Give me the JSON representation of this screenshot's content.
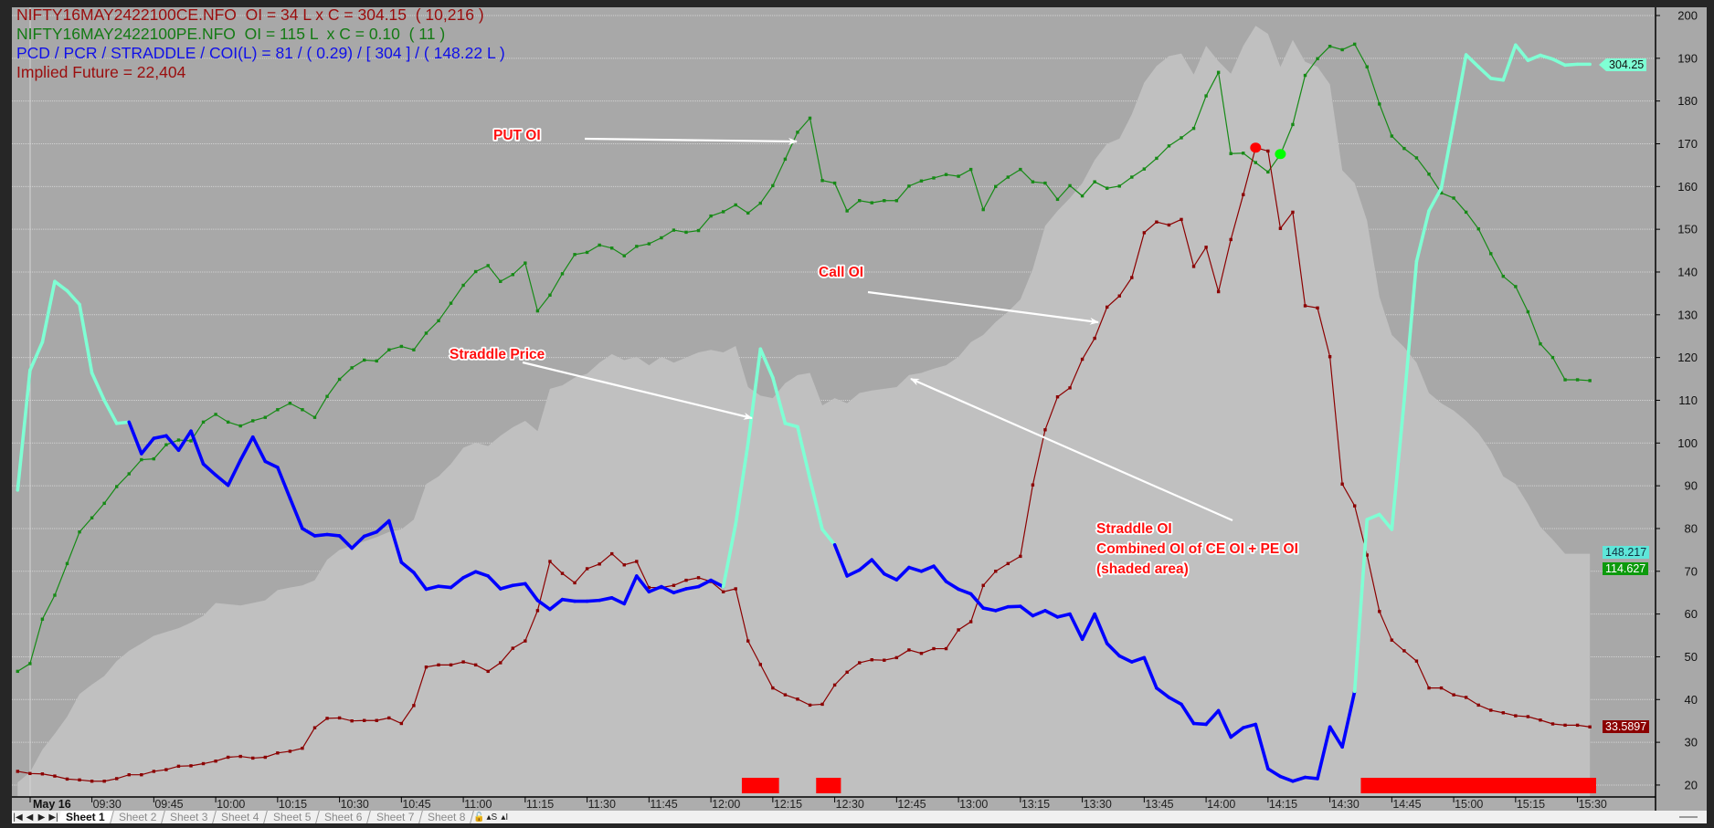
{
  "header": {
    "line1": "NIFTY16MAY2422100CE.NFO  OI = 34 L x C = 304.15  ( 10,216 )",
    "line2": "NIFTY16MAY2422100PE.NFO  OI = 115 L  x C = 0.10  ( 11 )",
    "line3": "PCD / PCR / STRADDLE / COI(L) = 81 / ( 0.29) / [ 304 ] / ( 148.22 L )",
    "line4": "Implied Future = 22,404"
  },
  "annotations": {
    "put_oi": "PUT OI",
    "call_oi": "Call OI",
    "straddle_price": "Straddle Price",
    "straddle_oi_1": "Straddle OI",
    "straddle_oi_2": "Combined OI of CE OI + PE OI",
    "straddle_oi_3": "(shaded area)"
  },
  "value_labels": {
    "straddle": "304.25",
    "coi": "148.217",
    "pe_oi": "114.627",
    "ce_oi": "33.5897"
  },
  "sheets": {
    "nav": [
      "|◀",
      "◀",
      "▶",
      "▶|"
    ],
    "tabs": [
      "Sheet 1",
      "Sheet 2",
      "Sheet 3",
      "Sheet 4",
      "Sheet 5",
      "Sheet 6",
      "Sheet 7",
      "Sheet 8"
    ],
    "active": "Sheet 1",
    "icons": [
      "lock-icon",
      "scale-s-icon",
      "scale-i-icon"
    ],
    "icon_glyphs": [
      "🔓",
      "▴S",
      "▴I"
    ]
  },
  "chart_data": {
    "type": "line",
    "title": "",
    "start_time": "09:12",
    "interval_min": 3,
    "x_axis": {
      "date_label": "May 16",
      "ticks": [
        "09:30",
        "09:45",
        "10:00",
        "10:15",
        "10:30",
        "10:45",
        "11:00",
        "11:15",
        "11:30",
        "11:45",
        "12:00",
        "12:15",
        "12:30",
        "12:45",
        "13:00",
        "13:15",
        "13:30",
        "13:45",
        "14:00",
        "14:15",
        "14:30",
        "14:45",
        "15:00",
        "15:15",
        "15:30"
      ]
    },
    "y_axis": {
      "position": "right",
      "range": [
        20,
        200
      ],
      "ticks": [
        200,
        190,
        180,
        170,
        160,
        150,
        140,
        130,
        120,
        110,
        100,
        90,
        80,
        70,
        60,
        50,
        40,
        30,
        20
      ],
      "grid": true
    },
    "series": [
      {
        "name": "Straddle OI (CE OI + PE OI)",
        "kind": "area",
        "color": "#c0c0c0",
        "values": [
          20.6,
          23,
          28.3,
          32,
          36,
          41.3,
          43.5,
          45.5,
          49,
          51.4,
          53.1,
          54.9,
          55.8,
          56.7,
          58,
          59.6,
          62.6,
          62.3,
          62,
          62.6,
          63.2,
          65.6,
          66.2,
          66.7,
          67.9,
          72.7,
          75,
          76,
          77,
          78,
          79.2,
          79.8,
          82.1,
          90.4,
          92.2,
          95.1,
          98.9,
          100.1,
          99.3,
          101.7,
          103.7,
          105.2,
          102.8,
          112.7,
          113.5,
          115.3,
          116.2,
          118.8,
          120.8,
          119.4,
          120.2,
          118.2,
          120.2,
          118.8,
          120,
          121.2,
          121.8,
          121.2,
          122.7,
          113.1,
          111.1,
          110.5,
          114,
          115.9,
          116.4,
          108.8,
          110.5,
          109.3,
          111.7,
          112.3,
          112.7,
          113.1,
          115.9,
          116.4,
          117.4,
          118.2,
          120.2,
          123.6,
          125.3,
          128.3,
          130.7,
          133.6,
          140.7,
          150.8,
          154.3,
          157.3,
          160.8,
          166.2,
          170,
          171.2,
          176.9,
          184.3,
          188.2,
          190.5,
          191.1,
          186.2,
          192.9,
          189.3,
          186.4,
          192.9,
          197.6,
          195.7,
          188,
          194.3,
          189.2,
          188,
          183.9,
          163.8,
          160.8,
          152,
          134.2,
          125.3,
          122.4,
          118.8,
          111.7,
          109.3,
          107.6,
          105.2,
          102.3,
          98.1,
          92.2,
          90.4,
          85.7,
          80.4,
          77.4,
          74.1,
          74.1,
          74.1
        ]
      },
      {
        "name": "PUT OI",
        "kind": "line-markers",
        "color": "#168a16",
        "values": [
          46.6,
          48.4,
          58.8,
          64.4,
          71.8,
          79.2,
          82.5,
          85.9,
          89.8,
          92.8,
          96.1,
          96.3,
          99.6,
          100.7,
          100.5,
          104.9,
          106.7,
          104.9,
          104,
          105.2,
          106,
          107.8,
          109.3,
          107.8,
          106,
          110.9,
          114.9,
          117.6,
          119.4,
          119.2,
          121.8,
          122.6,
          121.8,
          125.7,
          128.6,
          132.7,
          136.9,
          140.1,
          141.5,
          137.8,
          139.4,
          142.1,
          130.9,
          134.6,
          139.6,
          144.1,
          144.6,
          146.3,
          145.6,
          143.8,
          146,
          146.6,
          148,
          149.8,
          149.3,
          149.7,
          153.1,
          154.1,
          155.7,
          153.8,
          156.1,
          160.2,
          166.4,
          172.7,
          176,
          161.4,
          160.8,
          154.3,
          156.7,
          156.2,
          156.7,
          156.7,
          160.1,
          161.3,
          162,
          162.8,
          162.4,
          164,
          154.6,
          160,
          162.2,
          164,
          161.1,
          160.8,
          157,
          160.2,
          157.8,
          161.1,
          159.6,
          160.1,
          162.2,
          164.1,
          166.6,
          169.5,
          171.4,
          173.6,
          181.2,
          186.7,
          167.7,
          167.8,
          165.6,
          163.4,
          167.5,
          174.5,
          186,
          189.9,
          192.8,
          192,
          193.3,
          188,
          179.3,
          171.8,
          168.9,
          166.7,
          162.9,
          158.5,
          157.3,
          154,
          150.1,
          144.3,
          139,
          136.6,
          130.7,
          123.2,
          120,
          114.8,
          114.8,
          114.6
        ]
      },
      {
        "name": "Call OI",
        "kind": "line-markers",
        "color": "#8b0000",
        "values": [
          23.2,
          22.7,
          22.6,
          22.1,
          21.4,
          21.2,
          20.9,
          20.9,
          21.5,
          22.4,
          22.4,
          23.2,
          23.6,
          24.4,
          24.5,
          25,
          25.6,
          26.5,
          26.7,
          26.3,
          26.5,
          27.5,
          27.9,
          28.6,
          33.4,
          35.6,
          35.7,
          35,
          35.1,
          35.1,
          35.7,
          34.4,
          38.6,
          47.6,
          48.1,
          48.1,
          48.8,
          48.1,
          46.6,
          48.6,
          52,
          53.7,
          60.8,
          72.3,
          69.5,
          67.3,
          70.6,
          71.7,
          74.1,
          71.5,
          72.3,
          66.2,
          66.2,
          66.7,
          67.9,
          68.5,
          67.6,
          65.2,
          65.9,
          53.7,
          48.2,
          42.7,
          41.1,
          40.1,
          38.7,
          38.9,
          43.4,
          46.4,
          48.6,
          49.3,
          49.2,
          49.8,
          51.6,
          50.8,
          51.9,
          51.9,
          56.3,
          58.2,
          66.7,
          70,
          71.8,
          73.5,
          90.2,
          103.1,
          110.8,
          112.9,
          119.6,
          124.5,
          131.8,
          134.4,
          138.7,
          149.2,
          151.7,
          151,
          152.3,
          141.3,
          145.8,
          135.4,
          147.6,
          158.1,
          169.1,
          168.3,
          150.2,
          154,
          132.1,
          131.6,
          120.2,
          90.4,
          85.3,
          73.8,
          60.6,
          53.9,
          51.4,
          49,
          42.7,
          42.7,
          41.1,
          40.5,
          38.7,
          37.5,
          36.9,
          36.2,
          36,
          35.2,
          34.3,
          34,
          34,
          33.6
        ]
      },
      {
        "name": "Straddle Price",
        "kind": "thick-line",
        "color": "#0000ff",
        "highlight_color": "#7fffd4",
        "highlight_ranges": [
          [
            "09:12",
            "09:39"
          ],
          [
            "12:03",
            "12:30"
          ],
          [
            "14:36",
            "15:33"
          ]
        ],
        "values": [
          89,
          117,
          123.6,
          137.8,
          135.6,
          132.4,
          116.4,
          110,
          104.6,
          104.9,
          97.5,
          101.1,
          101.7,
          98.3,
          102.8,
          95.1,
          92.5,
          90.1,
          96,
          101.4,
          95.7,
          94.3,
          87.1,
          80,
          78.3,
          78.6,
          78.3,
          75.4,
          78.2,
          79.2,
          81.8,
          72.1,
          69.7,
          65.8,
          66.5,
          66.2,
          68.5,
          69.9,
          68.9,
          65.9,
          66.7,
          67.1,
          63.2,
          61.1,
          63.4,
          63,
          63,
          63.2,
          63.8,
          62.4,
          68.9,
          65.2,
          66.4,
          65,
          65.9,
          66.4,
          67.9,
          66.4,
          81,
          99.9,
          122,
          115.3,
          104.6,
          103.8,
          91.6,
          79.8,
          76.2,
          68.9,
          70.3,
          72.7,
          69.4,
          68,
          70.9,
          70,
          71.2,
          67.6,
          65.8,
          64.7,
          61.4,
          60.8,
          61.7,
          61.8,
          59.6,
          60.8,
          59.3,
          60,
          54.1,
          60,
          53.1,
          50.2,
          48.8,
          49.8,
          42.7,
          40.5,
          38.9,
          34.4,
          34.2,
          37.4,
          31.2,
          33.4,
          34.2,
          23.8,
          22,
          20.9,
          21.8,
          21.5,
          33.6,
          28.9,
          41.9,
          82.1,
          83.3,
          79.8,
          109.9,
          142.5,
          154.3,
          159.6,
          175,
          190.8,
          188,
          185.3,
          184.9,
          193.1,
          189.5,
          190.7,
          189.8,
          188.4,
          188.6,
          188.6
        ]
      }
    ],
    "markers": [
      {
        "name": "ce-peak-dot",
        "time": "14:12",
        "value": 169.1,
        "color": "#ff0000"
      },
      {
        "name": "pe-cross-dot",
        "time": "14:18",
        "value": 167.6,
        "color": "#00ff00"
      }
    ],
    "signal_bars": {
      "color": "#ff0000",
      "ranges": [
        [
          "12:09",
          "12:15"
        ],
        [
          "12:27",
          "12:30"
        ],
        [
          "14:39",
          "15:33"
        ]
      ]
    }
  }
}
